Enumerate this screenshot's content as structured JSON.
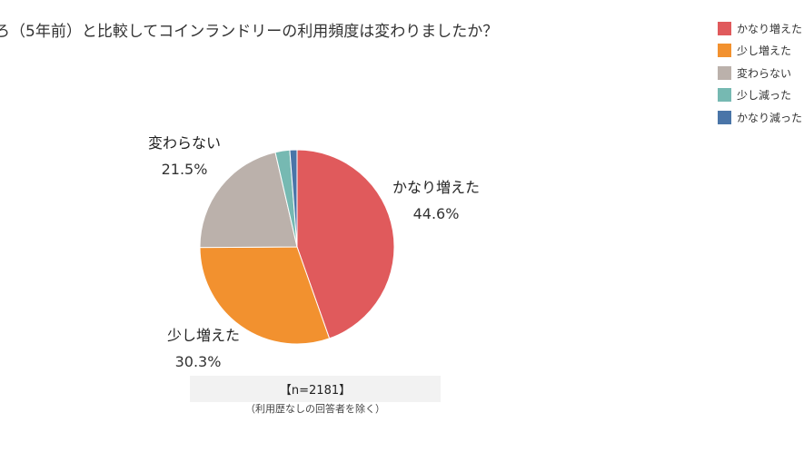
{
  "title": "ろ（5年前）と比較してコインランドリーの利用頻度は変わりましたか？",
  "chart_data": {
    "type": "pie",
    "slices": [
      {
        "label": "かなり増えた",
        "value": 44.6,
        "value_text": "44.6%",
        "color": "#e05a5c"
      },
      {
        "label": "少し増えた",
        "value": 30.3,
        "value_text": "30.3%",
        "color": "#f2912f"
      },
      {
        "label": "変わらない",
        "value": 21.5,
        "value_text": "21.5%",
        "color": "#bbb1ab"
      },
      {
        "label": "少し減った",
        "value": 2.4,
        "color": "#76b9b2"
      },
      {
        "label": "かなり減った",
        "value": 1.2,
        "color": "#4a75a8"
      }
    ],
    "legend": {
      "placement": "top-right",
      "items": [
        "かなり増えた",
        "少し増えた",
        "変わらない",
        "少し減った",
        "かなり減った"
      ]
    }
  },
  "note": {
    "main": "【n=2181】",
    "sub": "（利用歴なしの回答者を除く）"
  }
}
